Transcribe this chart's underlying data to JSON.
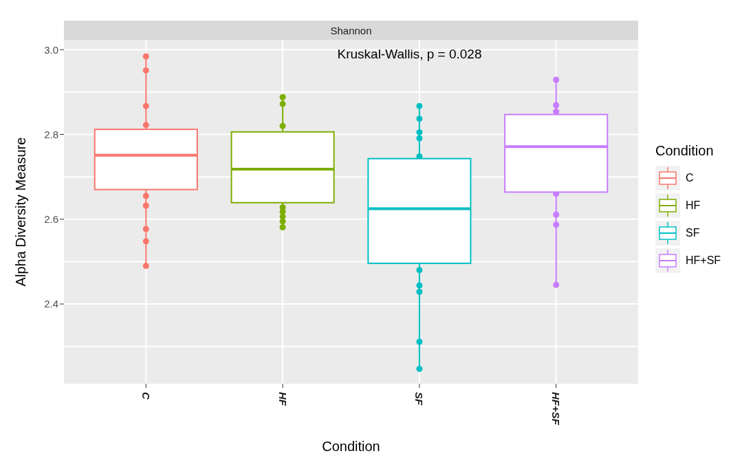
{
  "chart_data": {
    "type": "box",
    "title": "Shannon",
    "xlabel": "Condition",
    "ylabel": "Alpha Diversity Measure",
    "legend_title": "Condition",
    "annotations": [
      "Kruskal-Wallis, p = 0.028"
    ],
    "categories": [
      "C",
      "HF",
      "SF",
      "HF+SF"
    ],
    "colors": [
      "#f8766d",
      "#7cae00",
      "#00bfc4",
      "#c77cff"
    ],
    "boxes": [
      {
        "low": 2.49,
        "q1": 2.67,
        "median": 2.751,
        "q3": 2.812,
        "high": 2.984
      },
      {
        "low": 2.581,
        "q1": 2.639,
        "median": 2.718,
        "q3": 2.806,
        "high": 2.888
      },
      {
        "low": 2.247,
        "q1": 2.496,
        "median": 2.625,
        "q3": 2.743,
        "high": 2.867
      },
      {
        "low": 2.445,
        "q1": 2.664,
        "median": 2.771,
        "q3": 2.847,
        "high": 2.929
      }
    ],
    "series": [
      {
        "name": "C",
        "type": "scatter",
        "color": "#f8766d",
        "x": [
          "C",
          "C",
          "C",
          "C",
          "C",
          "C",
          "C",
          "C",
          "C"
        ],
        "values": [
          2.984,
          2.951,
          2.867,
          2.822,
          2.655,
          2.632,
          2.577,
          2.548,
          2.49
        ]
      },
      {
        "name": "HF",
        "type": "scatter",
        "color": "#7cae00",
        "x": [
          "HF",
          "HF",
          "HF",
          "HF",
          "HF",
          "HF",
          "HF",
          "HF"
        ],
        "values": [
          2.888,
          2.872,
          2.82,
          2.628,
          2.618,
          2.606,
          2.595,
          2.581
        ]
      },
      {
        "name": "SF",
        "type": "scatter",
        "color": "#00bfc4",
        "x": [
          "SF",
          "SF",
          "SF",
          "SF",
          "SF",
          "SF",
          "SF",
          "SF",
          "SF",
          "SF"
        ],
        "values": [
          2.867,
          2.837,
          2.805,
          2.791,
          2.748,
          2.48,
          2.444,
          2.429,
          2.311,
          2.247
        ]
      },
      {
        "name": "HF+SF",
        "type": "scatter",
        "color": "#c77cff",
        "x": [
          "HF+SF",
          "HF+SF",
          "HF+SF",
          "HF+SF",
          "HF+SF",
          "HF+SF",
          "HF+SF"
        ],
        "values": [
          2.929,
          2.869,
          2.854,
          2.66,
          2.611,
          2.587,
          2.445
        ]
      }
    ],
    "ylim": [
      2.212,
      3.023
    ],
    "yticks": [
      {
        "value": 2.4,
        "label": "2.4"
      },
      {
        "value": 2.6,
        "label": "2.6"
      },
      {
        "value": 2.8,
        "label": "2.8"
      },
      {
        "value": 3,
        "label": "3.0"
      }
    ],
    "grid": true,
    "legend": "right",
    "marker": "circle"
  }
}
